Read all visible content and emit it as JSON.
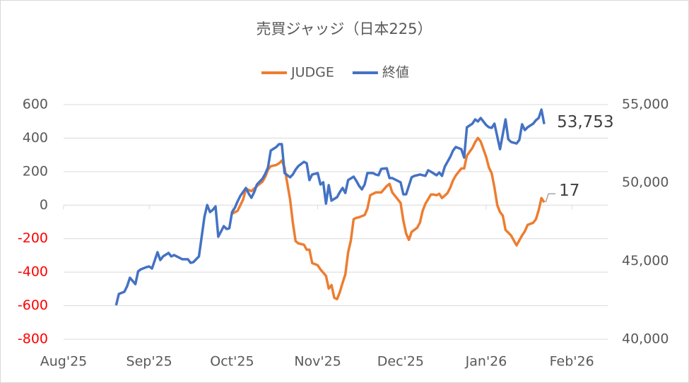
{
  "chart_data": {
    "type": "line",
    "title": "売買ジャッジ（日本225）",
    "xlim": [
      0,
      197
    ],
    "xticks": [
      {
        "value": 0,
        "label": "Aug'25"
      },
      {
        "value": 31,
        "label": "Sep'25"
      },
      {
        "value": 61,
        "label": "Oct'25"
      },
      {
        "value": 92,
        "label": "Nov'25"
      },
      {
        "value": 122,
        "label": "Dec'25"
      },
      {
        "value": 153,
        "label": "Jan'26"
      },
      {
        "value": 184,
        "label": "Feb'26"
      }
    ],
    "ylim": [
      -800,
      600
    ],
    "yticks": [
      -800,
      -600,
      -400,
      -200,
      0,
      200,
      400,
      600
    ],
    "negative_tick_color": "#ff0000",
    "y2lim": [
      40000,
      55000
    ],
    "y2ticks": [
      {
        "value": 40000,
        "label": "40,000"
      },
      {
        "value": 45000,
        "label": "45,000"
      },
      {
        "value": 50000,
        "label": "50,000"
      },
      {
        "value": 55000,
        "label": "55,000"
      }
    ],
    "grid": true,
    "legend": "top",
    "series": [
      {
        "name": "JUDGE",
        "color": "#ed7d31",
        "axis": "y",
        "x": [
          61,
          63,
          65,
          66,
          68,
          70,
          72,
          73,
          74,
          75,
          77,
          78,
          79,
          80,
          82,
          83,
          84,
          85,
          87,
          88,
          89,
          90,
          92,
          93,
          95,
          96,
          97,
          98,
          99,
          100,
          101,
          102,
          103,
          104,
          105,
          106,
          107,
          109,
          110,
          111,
          113,
          114,
          115,
          117,
          118,
          119,
          120,
          122,
          123,
          124,
          125,
          126,
          128,
          129,
          130,
          131,
          133,
          134,
          135,
          136,
          137,
          139,
          140,
          141,
          142,
          144,
          145,
          146,
          148,
          149,
          150,
          151,
          153,
          154,
          155,
          156,
          157,
          158,
          159,
          160,
          162,
          163,
          164,
          166,
          167,
          168,
          170,
          171,
          172,
          173,
          174
        ],
        "values": [
          -51,
          -34,
          34,
          97,
          84,
          114,
          139,
          169,
          211,
          232,
          240,
          249,
          266,
          224,
          34,
          -105,
          -215,
          -228,
          -236,
          -266,
          -266,
          -346,
          -359,
          -384,
          -422,
          -498,
          -477,
          -553,
          -561,
          -519,
          -464,
          -413,
          -283,
          -211,
          -84,
          -76,
          -72,
          -59,
          -21,
          59,
          76,
          76,
          76,
          114,
          127,
          76,
          55,
          13,
          -93,
          -169,
          -207,
          -160,
          -135,
          -105,
          -34,
          8,
          63,
          63,
          59,
          68,
          42,
          72,
          105,
          148,
          177,
          219,
          219,
          295,
          342,
          376,
          401,
          380,
          287,
          224,
          190,
          105,
          0,
          -42,
          -63,
          -148,
          -181,
          -211,
          -240,
          -181,
          -156,
          -118,
          -105,
          -84,
          -30,
          42,
          17
        ]
      },
      {
        "name": "終値",
        "color": "#4472c4",
        "axis": "y2",
        "x": [
          19,
          20,
          22,
          23,
          24,
          26,
          27,
          28,
          30,
          31,
          32,
          34,
          35,
          36,
          38,
          39,
          40,
          42,
          43,
          45,
          46,
          47,
          49,
          50,
          51,
          52,
          53,
          54,
          55,
          56,
          58,
          59,
          60,
          61,
          62,
          63,
          64,
          66,
          67,
          68,
          69,
          70,
          72,
          73,
          74,
          75,
          77,
          78,
          79,
          80,
          82,
          83,
          84,
          85,
          87,
          88,
          89,
          90,
          92,
          93,
          94,
          95,
          96,
          97,
          99,
          100,
          101,
          102,
          103,
          105,
          106,
          107,
          108,
          109,
          110,
          112,
          113,
          114,
          115,
          117,
          118,
          119,
          120,
          122,
          123,
          124,
          126,
          127,
          128,
          129,
          131,
          132,
          133,
          135,
          136,
          137,
          138,
          140,
          141,
          142,
          144,
          145,
          146,
          148,
          149,
          150,
          151,
          153,
          154,
          155,
          156,
          158,
          159,
          160,
          161,
          162,
          164,
          165,
          166,
          167,
          168,
          170,
          171,
          172,
          173,
          174
        ],
        "values": [
          42170,
          42890,
          43030,
          43390,
          43930,
          43520,
          44340,
          44470,
          44610,
          44650,
          44520,
          45560,
          45060,
          45290,
          45510,
          45290,
          45380,
          45200,
          45110,
          45110,
          44880,
          44930,
          45290,
          46550,
          47820,
          48580,
          48130,
          48270,
          48490,
          46550,
          47230,
          47050,
          47090,
          48130,
          48400,
          48810,
          49170,
          49670,
          49310,
          49040,
          49400,
          49890,
          50260,
          50570,
          50980,
          52060,
          52290,
          52470,
          52470,
          50620,
          50350,
          50530,
          50840,
          51070,
          51340,
          51250,
          50170,
          50530,
          50620,
          49890,
          50030,
          48670,
          49850,
          48860,
          49080,
          49400,
          49670,
          49350,
          50170,
          50390,
          50120,
          49800,
          49580,
          49890,
          50620,
          50620,
          50530,
          50480,
          50890,
          50930,
          50300,
          50300,
          50210,
          50030,
          49260,
          49260,
          50350,
          50440,
          50480,
          50530,
          50440,
          50800,
          50710,
          50480,
          50660,
          50440,
          51030,
          51660,
          52060,
          52290,
          52150,
          51610,
          53550,
          53780,
          54050,
          53920,
          54140,
          53690,
          53550,
          53510,
          53780,
          52150,
          53100,
          54050,
          52780,
          52610,
          52510,
          52740,
          53740,
          53370,
          53550,
          53780,
          54000,
          54140,
          54680,
          53753
        ],
        "value_labels": [
          null,
          null,
          null,
          null,
          null,
          null,
          null,
          null,
          null,
          null,
          null,
          null,
          null,
          null,
          null,
          null,
          null,
          null,
          null,
          null,
          null,
          null,
          null,
          null,
          null,
          null,
          null,
          null,
          null,
          null,
          null,
          null,
          null,
          null,
          null,
          null,
          null,
          null,
          null,
          null,
          null,
          null,
          null,
          null,
          null,
          null,
          null,
          null,
          null,
          null,
          null,
          null,
          null,
          null,
          null,
          null,
          null,
          null,
          null,
          null,
          null,
          null,
          null,
          null,
          null,
          null,
          null,
          null,
          null,
          null,
          null,
          null,
          null,
          null,
          null,
          null,
          null,
          null,
          null,
          null,
          null,
          null,
          null,
          null,
          null,
          null,
          null,
          null,
          null,
          null,
          null,
          null,
          null,
          null,
          null,
          null,
          null,
          null,
          null,
          null,
          null,
          null,
          null,
          null,
          null,
          null,
          null,
          null,
          null,
          null,
          null,
          null,
          null,
          null,
          null,
          null,
          null,
          null,
          null,
          null,
          null,
          null,
          null,
          null,
          null,
          "53,753"
        ]
      }
    ]
  }
}
